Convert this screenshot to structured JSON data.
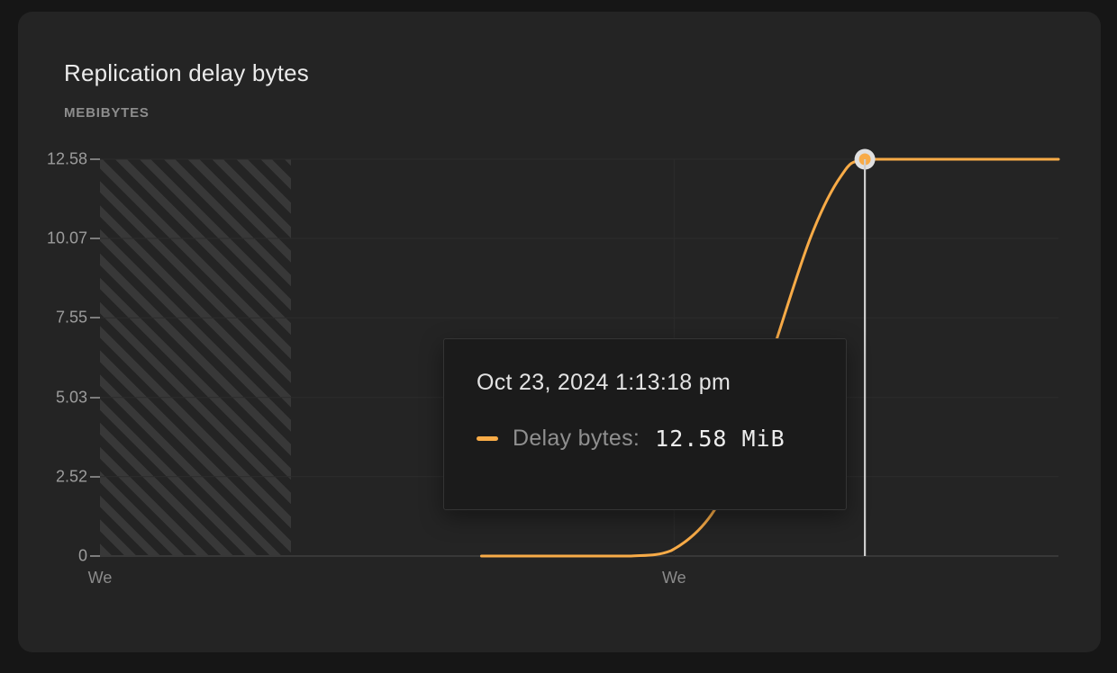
{
  "card": {
    "title": "Replication delay bytes",
    "subtitle": "MEBIBYTES"
  },
  "colors": {
    "page_bg": "#161616",
    "card_bg": "#242424",
    "accent_orange": "#f8ab47",
    "grid": "#2c2c2c",
    "axis_baseline": "#383838",
    "crosshair": "#cdcdcd",
    "marker_ring": "#e0e0e0"
  },
  "chart_data": {
    "type": "line",
    "title": "Replication delay bytes",
    "ylabel": "MEBIBYTES",
    "ylim": [
      0,
      12.58
    ],
    "grid": "on",
    "legend_position": "tooltip",
    "y_ticks": [
      {
        "label": "12.58",
        "value": 12.58
      },
      {
        "label": "10.07",
        "value": 10.07
      },
      {
        "label": "7.55",
        "value": 7.55
      },
      {
        "label": "5.03",
        "value": 5.03
      },
      {
        "label": "2.52",
        "value": 2.52
      },
      {
        "label": "0",
        "value": 0
      }
    ],
    "x_ticks": [
      {
        "label": "We",
        "frac": 0.0
      },
      {
        "label": "We",
        "frac": 0.599
      }
    ],
    "grid_x_fracs": [
      0.599
    ],
    "no_data_region_frac": [
      0,
      0.199
    ],
    "series": [
      {
        "name": "Delay bytes",
        "color": "#f8ab47",
        "unit": "MiB",
        "points": [
          [
            0.398,
            0
          ],
          [
            0.5,
            0
          ],
          [
            0.554,
            0
          ],
          [
            0.596,
            0.17
          ],
          [
            0.641,
            1.45
          ],
          [
            0.676,
            3.94
          ],
          [
            0.707,
            6.96
          ],
          [
            0.742,
            10.15
          ],
          [
            0.773,
            12.04
          ],
          [
            0.798,
            12.58
          ],
          [
            0.87,
            12.58
          ],
          [
            1.0,
            12.58
          ]
        ]
      }
    ],
    "hover_point": {
      "x_frac": 0.798,
      "value_mib": 12.58,
      "value_label": "12.58 MiB",
      "timestamp": "Oct 23, 2024 1:13:18 pm"
    }
  },
  "tooltip": {
    "timestamp": "Oct 23, 2024 1:13:18 pm",
    "series_label": "Delay bytes:",
    "value": "12.58 MiB"
  }
}
